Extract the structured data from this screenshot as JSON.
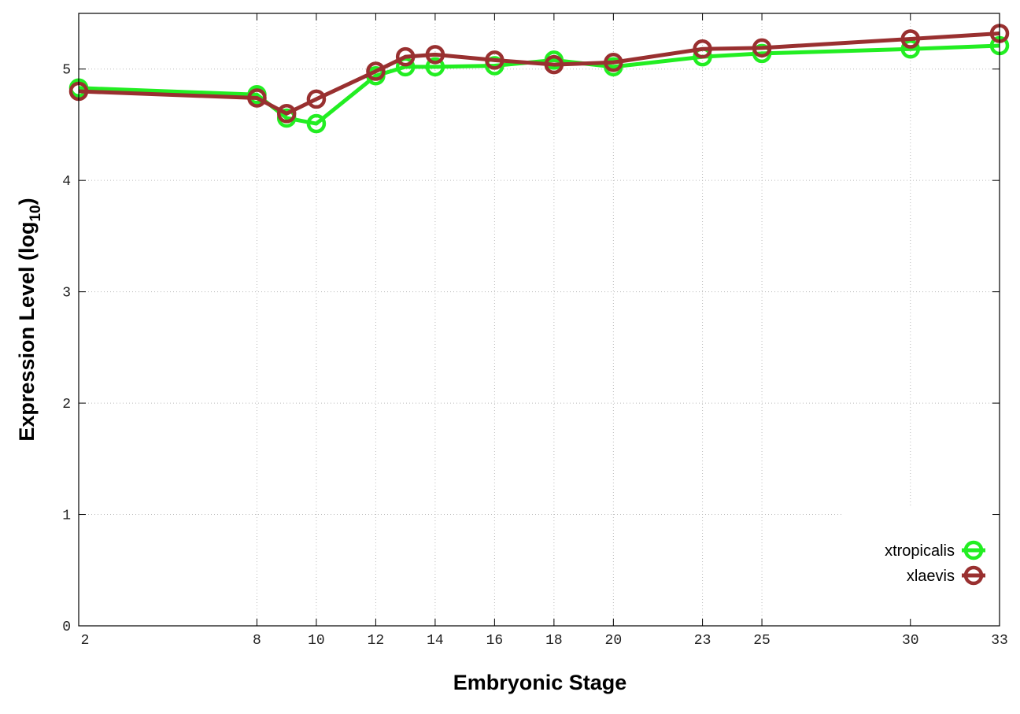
{
  "chart_data": {
    "type": "line",
    "xlabel": "Embryonic Stage",
    "ylabel": {
      "text": "Expression Level (log",
      "subscript": "10",
      "suffix": ")"
    },
    "x": [
      2,
      8,
      9,
      10,
      12,
      13,
      14,
      16,
      18,
      20,
      23,
      25,
      30,
      33
    ],
    "series": [
      {
        "name": "xtropicalis",
        "color": "#22ee22",
        "values": [
          4.83,
          4.77,
          4.56,
          4.51,
          4.94,
          5.02,
          5.02,
          5.03,
          5.08,
          5.02,
          5.11,
          5.14,
          5.18,
          5.21
        ]
      },
      {
        "name": "xlaevis",
        "color": "#993030",
        "values": [
          4.8,
          4.74,
          4.6,
          4.73,
          4.98,
          5.11,
          5.13,
          5.08,
          5.04,
          5.06,
          5.18,
          5.19,
          5.27,
          5.32
        ]
      }
    ],
    "xlim": [
      2,
      33
    ],
    "xticks": [
      2,
      8,
      10,
      12,
      14,
      16,
      18,
      20,
      23,
      25,
      30,
      33
    ],
    "ylim": [
      0,
      5.5
    ],
    "yticks": [
      0,
      1,
      2,
      3,
      4,
      5
    ],
    "grid": true,
    "legend": "lower-right"
  }
}
